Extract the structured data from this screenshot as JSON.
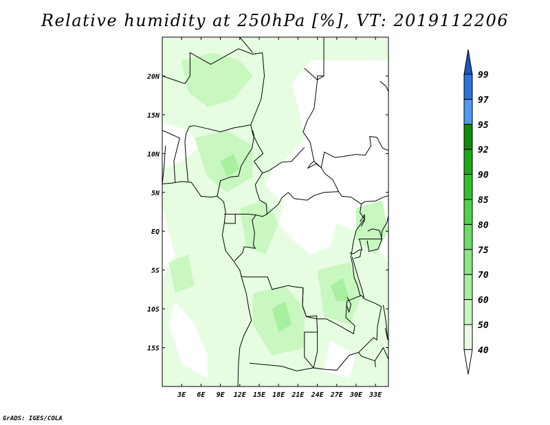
{
  "chart_data": {
    "type": "heatmap",
    "title": "Relative humidity at 250hPa [%], VT: 2019112206",
    "x_ticks": [
      "3E",
      "6E",
      "9E",
      "12E",
      "15E",
      "18E",
      "21E",
      "24E",
      "27E",
      "30E",
      "33E"
    ],
    "y_ticks": [
      "20N",
      "15N",
      "10N",
      "5N",
      "EQ",
      "5S",
      "10S",
      "15S"
    ],
    "lon_range": [
      0,
      35
    ],
    "lat_range": [
      -20,
      25
    ],
    "colorbar": {
      "levels": [
        40,
        50,
        60,
        70,
        75,
        80,
        85,
        90,
        92,
        95,
        97,
        99
      ],
      "colors": [
        "#ffffff",
        "#e6fde1",
        "#c8f7c0",
        "#a8f0a0",
        "#8be882",
        "#6bde63",
        "#4fd246",
        "#33c22b",
        "#1ca816",
        "#0e8b0b",
        "#4d9bf2",
        "#2a75dc",
        "#1a55c0"
      ],
      "label_values": [
        "99",
        "97",
        "95",
        "92",
        "90",
        "85",
        "80",
        "75",
        "70",
        "60",
        "50",
        "40"
      ]
    },
    "fields": [
      {
        "level": 40,
        "note": "widespread light green over most of domain"
      },
      {
        "level": 50,
        "note": "embedded patches, densest over Angola/Zambia and Congo basin"
      },
      {
        "level": 60,
        "note": "small patches near Cameroon and central Africa"
      }
    ]
  },
  "footer": "GrADS: IGES/COLA",
  "colors": {
    "map_border": "#000000",
    "background": "#ffffff"
  }
}
